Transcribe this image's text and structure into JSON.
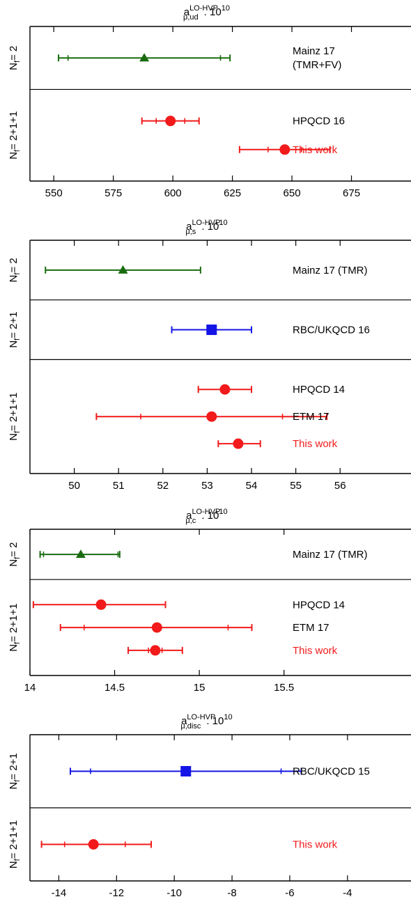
{
  "chart_data": [
    {
      "type": "scatter",
      "title": {
        "base": "a",
        "sup": "LO-HVP",
        "sub": "μ,ud",
        "suffix": ". 10",
        "exp": "10"
      },
      "xlim": [
        540,
        700
      ],
      "xticks": [
        550,
        575,
        600,
        625,
        650,
        675
      ],
      "groups": [
        {
          "label": "Nf= 2",
          "label_parts": {
            "main": "N",
            "sub": "f",
            "rest": "= 2"
          },
          "rows": 1
        },
        {
          "label": "Nf= 2+1+1",
          "label_parts": {
            "main": "N",
            "sub": "f",
            "rest": "= 2+1+1"
          },
          "rows": 2
        }
      ],
      "entries": [
        {
          "group": 0,
          "name_lines": [
            "Mainz 17",
            "(TMR+FV)"
          ],
          "value": 588,
          "stat_err": [
            556,
            620
          ],
          "total_err": [
            552,
            624
          ],
          "marker": "triangle",
          "color": "#1a6b10"
        },
        {
          "group": 1,
          "name_lines": [
            "HPQCD 16"
          ],
          "value": 599,
          "stat_err": [
            593,
            605
          ],
          "total_err": [
            587,
            611
          ],
          "marker": "circle",
          "color": "#f21a1a"
        },
        {
          "group": 1,
          "name_lines": [
            "This work"
          ],
          "value": 647,
          "stat_err": [
            640,
            654
          ],
          "total_err": [
            628,
            666
          ],
          "marker": "circle",
          "color": "#f21a1a",
          "label_color": "#f21a1a"
        }
      ]
    },
    {
      "type": "scatter",
      "title": {
        "base": "a",
        "sup": "LO-HVP",
        "sub": "μ,s",
        "suffix": ". 10",
        "exp": "10"
      },
      "xlim": [
        49,
        57.6
      ],
      "xticks": [
        50,
        51,
        52,
        53,
        54,
        55,
        56
      ],
      "groups": [
        {
          "label": "Nf= 2",
          "label_parts": {
            "main": "N",
            "sub": "f",
            "rest": "= 2"
          },
          "rows": 1
        },
        {
          "label": "Nf= 2+1",
          "label_parts": {
            "main": "N",
            "sub": "f",
            "rest": "= 2+1"
          },
          "rows": 1
        },
        {
          "label": "Nf= 2+1+1",
          "label_parts": {
            "main": "N",
            "sub": "f",
            "rest": "= 2+1+1"
          },
          "rows": 3
        }
      ],
      "entries": [
        {
          "group": 0,
          "name_lines": [
            "Mainz 17 (TMR)"
          ],
          "value": 51.1,
          "stat_err": [
            49.35,
            52.85
          ],
          "total_err": [
            49.35,
            52.85
          ],
          "marker": "triangle",
          "color": "#1a6b10"
        },
        {
          "group": 1,
          "name_lines": [
            "RBC/UKQCD 16"
          ],
          "value": 53.1,
          "stat_err": [
            52.2,
            54.0
          ],
          "total_err": [
            52.2,
            54.0
          ],
          "marker": "square",
          "color": "#1414e6"
        },
        {
          "group": 2,
          "name_lines": [
            "HPQCD 14"
          ],
          "value": 53.4,
          "stat_err": [
            52.8,
            54.0
          ],
          "total_err": [
            52.8,
            54.0
          ],
          "marker": "circle",
          "color": "#f21a1a"
        },
        {
          "group": 2,
          "name_lines": [
            "ETM 17"
          ],
          "value": 53.1,
          "stat_err": [
            51.5,
            54.7
          ],
          "total_err": [
            50.5,
            55.7
          ],
          "marker": "circle",
          "color": "#f21a1a"
        },
        {
          "group": 2,
          "name_lines": [
            "This work"
          ],
          "value": 53.7,
          "stat_err": [
            53.25,
            54.2
          ],
          "total_err": [
            53.25,
            54.2
          ],
          "marker": "circle",
          "color": "#f21a1a",
          "label_color": "#f21a1a"
        }
      ]
    },
    {
      "type": "scatter",
      "title": {
        "base": "a",
        "sup": "LO-HVP",
        "sub": "μ,c",
        "suffix": ". 10",
        "exp": "10"
      },
      "xlim": [
        14,
        16.25
      ],
      "xticks": [
        14,
        14.5,
        15,
        15.5
      ],
      "tick_labels": [
        "14",
        "14.5",
        "15",
        "15.5"
      ],
      "groups": [
        {
          "label": "Nf= 2",
          "label_parts": {
            "main": "N",
            "sub": "f",
            "rest": "= 2"
          },
          "rows": 1
        },
        {
          "label": "Nf= 2+1+1",
          "label_parts": {
            "main": "N",
            "sub": "f",
            "rest": "= 2+1+1"
          },
          "rows": 3
        }
      ],
      "entries": [
        {
          "group": 0,
          "name_lines": [
            "Mainz 17 (TMR)"
          ],
          "value": 14.3,
          "stat_err": [
            14.08,
            14.52
          ],
          "total_err": [
            14.06,
            14.53
          ],
          "marker": "triangle",
          "color": "#1a6b10"
        },
        {
          "group": 1,
          "name_lines": [
            "HPQCD 14"
          ],
          "value": 14.42,
          "stat_err": [
            14.02,
            14.8
          ],
          "total_err": [
            14.02,
            14.8
          ],
          "marker": "circle",
          "color": "#f21a1a"
        },
        {
          "group": 1,
          "name_lines": [
            "ETM 17"
          ],
          "value": 14.75,
          "stat_err": [
            14.32,
            15.17
          ],
          "total_err": [
            14.18,
            15.31
          ],
          "marker": "circle",
          "color": "#f21a1a"
        },
        {
          "group": 1,
          "name_lines": [
            "This work"
          ],
          "value": 14.74,
          "stat_err": [
            14.7,
            14.78
          ],
          "total_err": [
            14.58,
            14.9
          ],
          "marker": "circle",
          "color": "#f21a1a",
          "label_color": "#f21a1a"
        }
      ]
    },
    {
      "type": "scatter",
      "title": {
        "base": "a",
        "sup": "LO-HVP",
        "sub": "μ,disc",
        "suffix": ". 10",
        "exp": "10"
      },
      "xlim": [
        -15,
        -1.8
      ],
      "xticks": [
        -14,
        -12,
        -10,
        -8,
        -6,
        -4
      ],
      "groups": [
        {
          "label": "Nf= 2+1",
          "label_parts": {
            "main": "N",
            "sub": "f",
            "rest": "= 2+1"
          },
          "rows": 1
        },
        {
          "label": "Nf= 2+1+1",
          "label_parts": {
            "main": "N",
            "sub": "f",
            "rest": "= 2+1+1"
          },
          "rows": 1
        }
      ],
      "entries": [
        {
          "group": 0,
          "name_lines": [
            "RBC/UKQCD 15"
          ],
          "value": -9.6,
          "stat_err": [
            -12.9,
            -6.3
          ],
          "total_err": [
            -13.6,
            -5.6
          ],
          "marker": "square",
          "color": "#1414e6"
        },
        {
          "group": 1,
          "name_lines": [
            "This work"
          ],
          "value": -12.8,
          "stat_err": [
            -13.8,
            -11.7
          ],
          "total_err": [
            -14.6,
            -10.8
          ],
          "marker": "circle",
          "color": "#f21a1a",
          "label_color": "#f21a1a"
        }
      ]
    }
  ]
}
